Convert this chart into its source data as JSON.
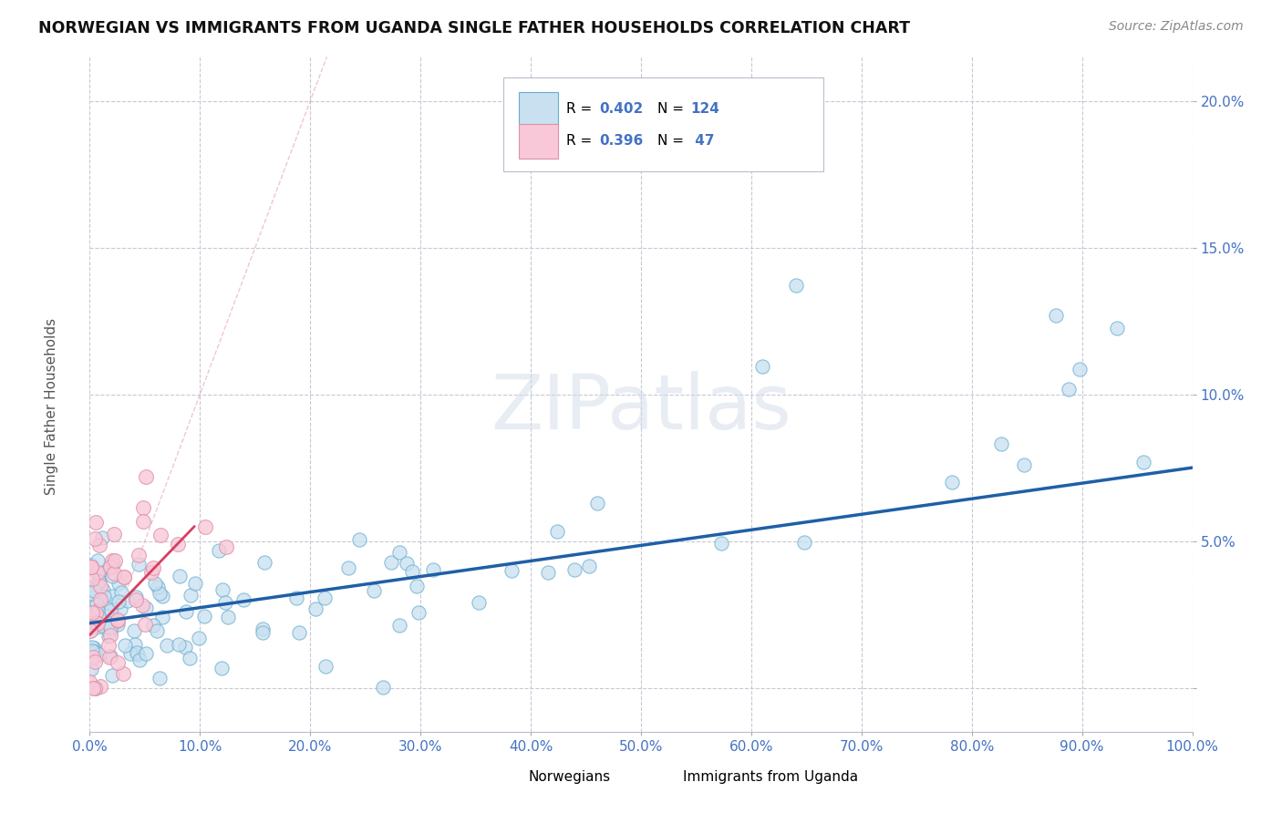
{
  "title": "NORWEGIAN VS IMMIGRANTS FROM UGANDA SINGLE FATHER HOUSEHOLDS CORRELATION CHART",
  "source": "Source: ZipAtlas.com",
  "ylabel": "Single Father Households",
  "xlim": [
    0,
    1.0
  ],
  "ylim": [
    -0.015,
    0.215
  ],
  "xticks": [
    0.0,
    0.1,
    0.2,
    0.3,
    0.4,
    0.5,
    0.6,
    0.7,
    0.8,
    0.9,
    1.0
  ],
  "yticks": [
    0.0,
    0.05,
    0.1,
    0.15,
    0.2
  ],
  "xticklabels": [
    "0.0%",
    "",
    "",
    "",
    "",
    "",
    "",
    "",
    "",
    "",
    "100.0%"
  ],
  "blue_color": "#7eb8d4",
  "pink_color": "#f4a0b0",
  "blue_line_color": "#1f5fa6",
  "pink_line_color": "#d44060",
  "pink_dash_color": "#e8a0b0",
  "blue_scatter_edge": "#6aaed0",
  "blue_scatter_face": "#c8e0f0",
  "pink_scatter_edge": "#e090a8",
  "pink_scatter_face": "#f8c8d8",
  "tick_color": "#4472c4",
  "background_color": "#ffffff",
  "grid_color": "#c8c8d8",
  "title_color": "#111111",
  "watermark": "ZIPatlas",
  "nor_trend_x0": 0.0,
  "nor_trend_y0": 0.022,
  "nor_trend_x1": 1.0,
  "nor_trend_y1": 0.075,
  "uga_trend_x0": 0.0,
  "uga_trend_y0": 0.018,
  "uga_trend_x1": 0.095,
  "uga_trend_y1": 0.055
}
